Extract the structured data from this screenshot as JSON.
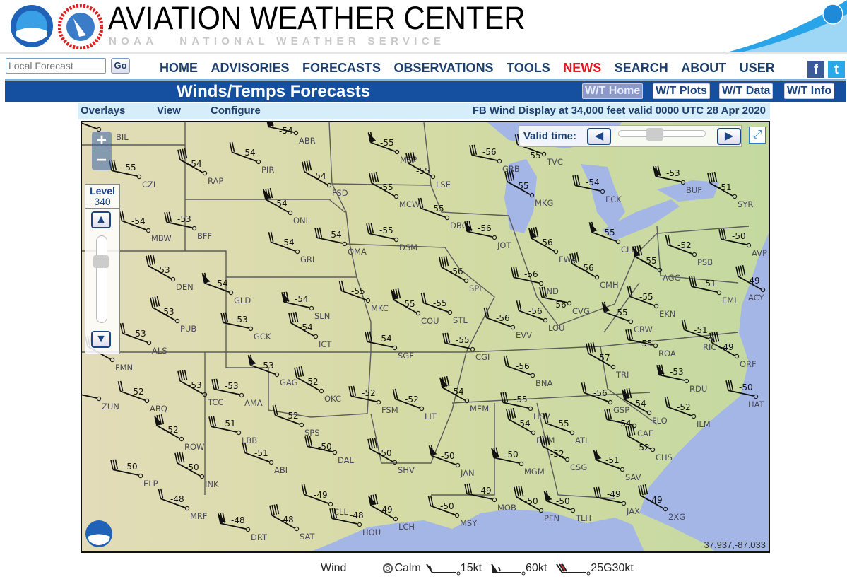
{
  "header": {
    "title": "AVIATION WEATHER CENTER",
    "subtitle": "NOAA   NATIONAL WEATHER SERVICE",
    "logos": [
      "NOAA",
      "NATIONAL WEATHER SERVICE"
    ]
  },
  "search": {
    "placeholder": "Local Forecast",
    "go_label": "Go"
  },
  "nav": {
    "items": [
      "HOME",
      "ADVISORIES",
      "FORECASTS",
      "OBSERVATIONS",
      "TOOLS",
      "NEWS",
      "SEARCH",
      "ABOUT",
      "USER"
    ],
    "facebook": "f",
    "twitter": "t"
  },
  "page": {
    "title": "Winds/Temps Forecasts",
    "buttons": [
      "W/T Home",
      "W/T Plots",
      "W/T Data",
      "W/T Info"
    ],
    "active_button": "W/T Home"
  },
  "subbar": {
    "menus": [
      "Overlays",
      "View",
      "Configure"
    ],
    "display_info": "FB Wind Display at 34,000 feet valid 0000 UTC 28 Apr 2020"
  },
  "map": {
    "zoom_in": "+",
    "zoom_out": "−",
    "level_label": "Level",
    "level_value": "340",
    "valid_time_label": "Valid time:",
    "valid_time_slider": 0.4,
    "coords": "37.937,-87.033",
    "colors": {
      "land": "#d8dca6",
      "water": "#a3b6e6",
      "border": "#5c5c5c"
    },
    "stations": [
      {
        "id": "BIL",
        "temp": ""
      },
      {
        "id": "CZI",
        "temp": "-55"
      },
      {
        "id": "RAP",
        "temp": "-54"
      },
      {
        "id": "PIR",
        "temp": "-54"
      },
      {
        "id": "ABR",
        "temp": "-54"
      },
      {
        "id": "FSD",
        "temp": "-54"
      },
      {
        "id": "MBW",
        "temp": "-54"
      },
      {
        "id": "BFF",
        "temp": "-53"
      },
      {
        "id": "ONL",
        "temp": "-54"
      },
      {
        "id": "GRI",
        "temp": "-54"
      },
      {
        "id": "OMA",
        "temp": "-54"
      },
      {
        "id": "DEN",
        "temp": "-53"
      },
      {
        "id": "GLD",
        "temp": "-54"
      },
      {
        "id": "GCK",
        "temp": "-53"
      },
      {
        "id": "PUB",
        "temp": "-53"
      },
      {
        "id": "ALS",
        "temp": "-53"
      },
      {
        "id": "SLN",
        "temp": "-54"
      },
      {
        "id": "ICT",
        "temp": "-54"
      },
      {
        "id": "MKC",
        "temp": "-55"
      },
      {
        "id": "SGF",
        "temp": "-54"
      },
      {
        "id": "COU",
        "temp": "-55"
      },
      {
        "id": "STL",
        "temp": "-55"
      },
      {
        "id": "DSM",
        "temp": "-55"
      },
      {
        "id": "MCW",
        "temp": "-55"
      },
      {
        "id": "MSP",
        "temp": "-55"
      },
      {
        "id": "GRB",
        "temp": "-56"
      },
      {
        "id": "LSE",
        "temp": "-55"
      },
      {
        "id": "DBQ",
        "temp": "-55"
      },
      {
        "id": "JOT",
        "temp": "-56"
      },
      {
        "id": "SPI",
        "temp": "-56"
      },
      {
        "id": "EVV",
        "temp": "-56"
      },
      {
        "id": "IND",
        "temp": "-56"
      },
      {
        "id": "FWA",
        "temp": "-56"
      },
      {
        "id": "LOU",
        "temp": "-56"
      },
      {
        "id": "CVG",
        "temp": "-56"
      },
      {
        "id": "CMH",
        "temp": "-56"
      },
      {
        "id": "CLE",
        "temp": "-55"
      },
      {
        "id": "ECK",
        "temp": "-54"
      },
      {
        "id": "MKG",
        "temp": "-55"
      },
      {
        "id": "TVC",
        "temp": "-55"
      },
      {
        "id": "BUF",
        "temp": "-53"
      },
      {
        "id": "SYR",
        "temp": "-51"
      },
      {
        "id": "PSB",
        "temp": "-52"
      },
      {
        "id": "AVP",
        "temp": "-50"
      },
      {
        "id": "AGC",
        "temp": "-55"
      },
      {
        "id": "EKN",
        "temp": "-55"
      },
      {
        "id": "EMI",
        "temp": "-51"
      },
      {
        "id": "ACY",
        "temp": "-49"
      },
      {
        "id": "CRW",
        "temp": "-55"
      },
      {
        "id": "ROA",
        "temp": "-55"
      },
      {
        "id": "ORF",
        "temp": "-49"
      },
      {
        "id": "RIC",
        "temp": "-51"
      },
      {
        "id": "RDU",
        "temp": "-53"
      },
      {
        "id": "TRI",
        "temp": "-57"
      },
      {
        "id": "BNA",
        "temp": "-56"
      },
      {
        "id": "CGI",
        "temp": "-55"
      },
      {
        "id": "MEM",
        "temp": "-54"
      },
      {
        "id": "LIT",
        "temp": "-52"
      },
      {
        "id": "FSM",
        "temp": "-52"
      },
      {
        "id": "OKC",
        "temp": "-52"
      },
      {
        "id": "GAG",
        "temp": "-53"
      },
      {
        "id": "AMA",
        "temp": "-53"
      },
      {
        "id": "TCC",
        "temp": "-53"
      },
      {
        "id": "ABQ",
        "temp": "-52"
      },
      {
        "id": "ZUN",
        "temp": ""
      },
      {
        "id": "FMN",
        "temp": ""
      },
      {
        "id": "SPS",
        "temp": "-52"
      },
      {
        "id": "LBB",
        "temp": "-51"
      },
      {
        "id": "ROW",
        "temp": "-52"
      },
      {
        "id": "ABI",
        "temp": "-51"
      },
      {
        "id": "DAL",
        "temp": "-50"
      },
      {
        "id": "SHV",
        "temp": "-50"
      },
      {
        "id": "JAN",
        "temp": "-50"
      },
      {
        "id": "HSV",
        "temp": "-55"
      },
      {
        "id": "BHM",
        "temp": "-54"
      },
      {
        "id": "ATL",
        "temp": "-55"
      },
      {
        "id": "MGM",
        "temp": "-50"
      },
      {
        "id": "CSG",
        "temp": "-52"
      },
      {
        "id": "GSP",
        "temp": "-56"
      },
      {
        "id": "CAE",
        "temp": "-54"
      },
      {
        "id": "FLO",
        "temp": "-54"
      },
      {
        "id": "ILM",
        "temp": "-52"
      },
      {
        "id": "HAT",
        "temp": "-50"
      },
      {
        "id": "CHS",
        "temp": "-52"
      },
      {
        "id": "SAV",
        "temp": "-51"
      },
      {
        "id": "ELP",
        "temp": "-50"
      },
      {
        "id": "INK",
        "temp": "-50"
      },
      {
        "id": "MRF",
        "temp": "-48"
      },
      {
        "id": "DRT",
        "temp": "-48"
      },
      {
        "id": "SAT",
        "temp": "-48"
      },
      {
        "id": "CLL",
        "temp": "-49"
      },
      {
        "id": "HOU",
        "temp": "-48"
      },
      {
        "id": "LCH",
        "temp": "-49"
      },
      {
        "id": "MSY",
        "temp": "-50"
      },
      {
        "id": "MOB",
        "temp": "-49"
      },
      {
        "id": "PFN",
        "temp": "-50"
      },
      {
        "id": "TLH",
        "temp": "-50"
      },
      {
        "id": "JAX",
        "temp": "-49"
      },
      {
        "id": "2XG",
        "temp": "-49"
      }
    ]
  },
  "legend": {
    "title": "Wind",
    "items": [
      "Calm",
      "15kt",
      "60kt",
      "25G30kt"
    ],
    "gust_color": "#e02020"
  }
}
